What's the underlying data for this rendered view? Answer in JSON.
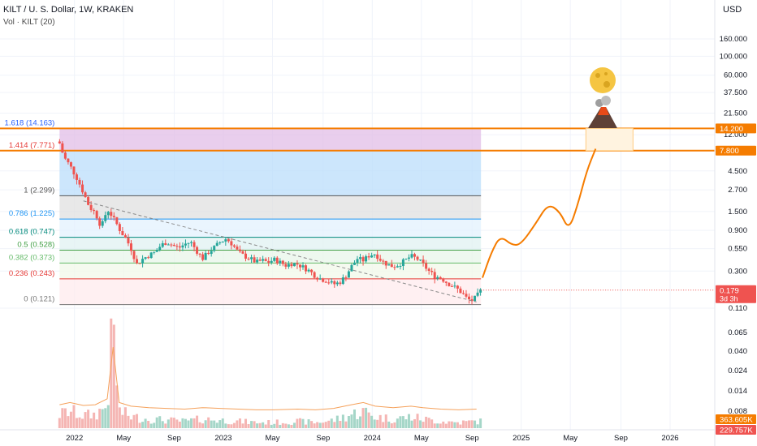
{
  "header": {
    "title": "KILT / U. S. Dollar, 1W, KRAKEN",
    "volume_label": "Vol · KILT (20)",
    "currency": "USD"
  },
  "chart_data": {
    "type": "candlestick",
    "scale": "log",
    "y_ticks": [
      "160.000",
      "100.000",
      "60.000",
      "37.500",
      "21.500",
      "12.000",
      "4.500",
      "2.700",
      "1.500",
      "0.900",
      "0.550",
      "0.300",
      "0.110",
      "0.065",
      "0.040",
      "0.024",
      "0.014",
      "0.008"
    ],
    "y_tick_values": [
      160,
      100,
      60,
      37.5,
      21.5,
      12,
      4.5,
      2.7,
      1.5,
      0.9,
      0.55,
      0.3,
      0.11,
      0.065,
      0.04,
      0.024,
      0.014,
      0.008
    ],
    "x_ticks": [
      {
        "label": "2022",
        "t": 2022.0
      },
      {
        "label": "May",
        "t": 2022.33
      },
      {
        "label": "Sep",
        "t": 2022.67
      },
      {
        "label": "2023",
        "t": 2023.0
      },
      {
        "label": "May",
        "t": 2023.33
      },
      {
        "label": "Sep",
        "t": 2023.67
      },
      {
        "label": "2024",
        "t": 2024.0
      },
      {
        "label": "May",
        "t": 2024.33
      },
      {
        "label": "Sep",
        "t": 2024.67
      },
      {
        "label": "2025",
        "t": 2025.0
      },
      {
        "label": "May",
        "t": 2025.33
      },
      {
        "label": "Sep",
        "t": 2025.67
      },
      {
        "label": "2026",
        "t": 2026.0
      }
    ],
    "price_path": [
      [
        2021.9,
        9.5
      ],
      [
        2021.93,
        6.5
      ],
      [
        2021.97,
        5.2
      ],
      [
        2022.02,
        3.6
      ],
      [
        2022.06,
        2.5
      ],
      [
        2022.1,
        1.7
      ],
      [
        2022.14,
        1.45
      ],
      [
        2022.18,
        0.98
      ],
      [
        2022.22,
        1.6
      ],
      [
        2022.25,
        1.35
      ],
      [
        2022.28,
        1.1
      ],
      [
        2022.31,
        0.88
      ],
      [
        2022.35,
        0.7
      ],
      [
        2022.38,
        0.55
      ],
      [
        2022.42,
        0.36
      ],
      [
        2022.46,
        0.42
      ],
      [
        2022.5,
        0.46
      ],
      [
        2022.54,
        0.5
      ],
      [
        2022.58,
        0.6
      ],
      [
        2022.62,
        0.66
      ],
      [
        2022.66,
        0.6
      ],
      [
        2022.7,
        0.56
      ],
      [
        2022.74,
        0.62
      ],
      [
        2022.78,
        0.66
      ],
      [
        2022.82,
        0.52
      ],
      [
        2022.86,
        0.42
      ],
      [
        2022.9,
        0.5
      ],
      [
        2022.94,
        0.57
      ],
      [
        2022.98,
        0.66
      ],
      [
        2023.02,
        0.72
      ],
      [
        2023.06,
        0.62
      ],
      [
        2023.1,
        0.5
      ],
      [
        2023.14,
        0.45
      ],
      [
        2023.18,
        0.42
      ],
      [
        2023.22,
        0.38
      ],
      [
        2023.26,
        0.4
      ],
      [
        2023.3,
        0.38
      ],
      [
        2023.34,
        0.41
      ],
      [
        2023.38,
        0.38
      ],
      [
        2023.42,
        0.35
      ],
      [
        2023.46,
        0.37
      ],
      [
        2023.5,
        0.36
      ],
      [
        2023.54,
        0.33
      ],
      [
        2023.58,
        0.3
      ],
      [
        2023.62,
        0.26
      ],
      [
        2023.66,
        0.24
      ],
      [
        2023.7,
        0.23
      ],
      [
        2023.74,
        0.21
      ],
      [
        2023.78,
        0.22
      ],
      [
        2023.82,
        0.26
      ],
      [
        2023.86,
        0.34
      ],
      [
        2023.9,
        0.42
      ],
      [
        2023.94,
        0.4
      ],
      [
        2023.98,
        0.46
      ],
      [
        2024.02,
        0.48
      ],
      [
        2024.06,
        0.4
      ],
      [
        2024.1,
        0.36
      ],
      [
        2024.14,
        0.34
      ],
      [
        2024.18,
        0.36
      ],
      [
        2024.22,
        0.4
      ],
      [
        2024.26,
        0.45
      ],
      [
        2024.3,
        0.42
      ],
      [
        2024.34,
        0.36
      ],
      [
        2024.38,
        0.3
      ],
      [
        2024.42,
        0.26
      ],
      [
        2024.46,
        0.25
      ],
      [
        2024.5,
        0.22
      ],
      [
        2024.54,
        0.2
      ],
      [
        2024.58,
        0.18
      ],
      [
        2024.61,
        0.16
      ],
      [
        2024.64,
        0.14
      ],
      [
        2024.67,
        0.135
      ],
      [
        2024.7,
        0.15
      ],
      [
        2024.73,
        0.179
      ]
    ],
    "volume_path": [
      [
        2021.9,
        0.12
      ],
      [
        2021.97,
        0.15
      ],
      [
        2022.06,
        0.11
      ],
      [
        2022.14,
        0.12
      ],
      [
        2022.22,
        0.2
      ],
      [
        2022.26,
        0.9
      ],
      [
        2022.3,
        0.15
      ],
      [
        2022.38,
        0.1
      ],
      [
        2022.5,
        0.08
      ],
      [
        2022.62,
        0.07
      ],
      [
        2022.74,
        0.06
      ],
      [
        2022.86,
        0.08
      ],
      [
        2022.98,
        0.07
      ],
      [
        2023.1,
        0.06
      ],
      [
        2023.22,
        0.05
      ],
      [
        2023.34,
        0.05
      ],
      [
        2023.5,
        0.06
      ],
      [
        2023.62,
        0.05
      ],
      [
        2023.74,
        0.07
      ],
      [
        2023.86,
        0.12
      ],
      [
        2023.94,
        0.15
      ],
      [
        2024.02,
        0.1
      ],
      [
        2024.14,
        0.08
      ],
      [
        2024.26,
        0.1
      ],
      [
        2024.34,
        0.08
      ],
      [
        2024.46,
        0.06
      ],
      [
        2024.58,
        0.05
      ],
      [
        2024.7,
        0.06
      ]
    ],
    "trend_line": [
      [
        2022.06,
        2.0
      ],
      [
        2024.7,
        0.13
      ]
    ],
    "projection": [
      [
        2024.74,
        0.25
      ],
      [
        2024.8,
        0.5
      ],
      [
        2024.86,
        0.78
      ],
      [
        2024.94,
        0.6
      ],
      [
        2025.0,
        0.62
      ],
      [
        2025.1,
        1.1
      ],
      [
        2025.18,
        1.85
      ],
      [
        2025.26,
        1.5
      ],
      [
        2025.32,
        0.9
      ],
      [
        2025.38,
        1.8
      ],
      [
        2025.44,
        4.5
      ],
      [
        2025.5,
        8.2
      ]
    ],
    "fib_levels": [
      {
        "label": "1.618 (14.163)",
        "value": 14.163,
        "color": "#2962ff",
        "fill": "#e1bee7"
      },
      {
        "label": "1.414 (7.771)",
        "value": 7.771,
        "color": "#e53935",
        "fill": "#bbdefb"
      },
      {
        "label": "1 (2.299)",
        "value": 2.299,
        "color": "#555555",
        "fill": "#e0e0e0"
      },
      {
        "label": "0.786 (1.225)",
        "value": 1.225,
        "color": "#2196f3",
        "fill": "#e3f2fd"
      },
      {
        "label": "0.618 (0.747)",
        "value": 0.747,
        "color": "#00897b",
        "fill": "#e0f2f1"
      },
      {
        "label": "0.5 (0.528)",
        "value": 0.528,
        "color": "#43a047",
        "fill": "#e8f5e9"
      },
      {
        "label": "0.382 (0.373)",
        "value": 0.373,
        "color": "#66bb6a",
        "fill": "#f1f8e9"
      },
      {
        "label": "0.236 (0.243)",
        "value": 0.243,
        "color": "#e53935",
        "fill": "#ffebee"
      },
      {
        "label": "0 (0.121)",
        "value": 0.121,
        "color": "#777777",
        "fill": "#fde0e0"
      }
    ],
    "horizontal_lines": [
      {
        "value": 14.2,
        "label": "14.200",
        "color": "#f57c00"
      },
      {
        "value": 7.8,
        "label": "7.800",
        "color": "#f57c00"
      }
    ],
    "price_tags": [
      {
        "value": 0.179,
        "label": "0.179",
        "sub": "3d 3h",
        "color": "#ef5350"
      }
    ],
    "volume_tags": [
      {
        "label": "363.605K",
        "color": "#f57c00"
      },
      {
        "label": "229.757K",
        "color": "#ef5350"
      }
    ],
    "annotations": [
      "moon-emoji",
      "volcano-emoji"
    ]
  }
}
